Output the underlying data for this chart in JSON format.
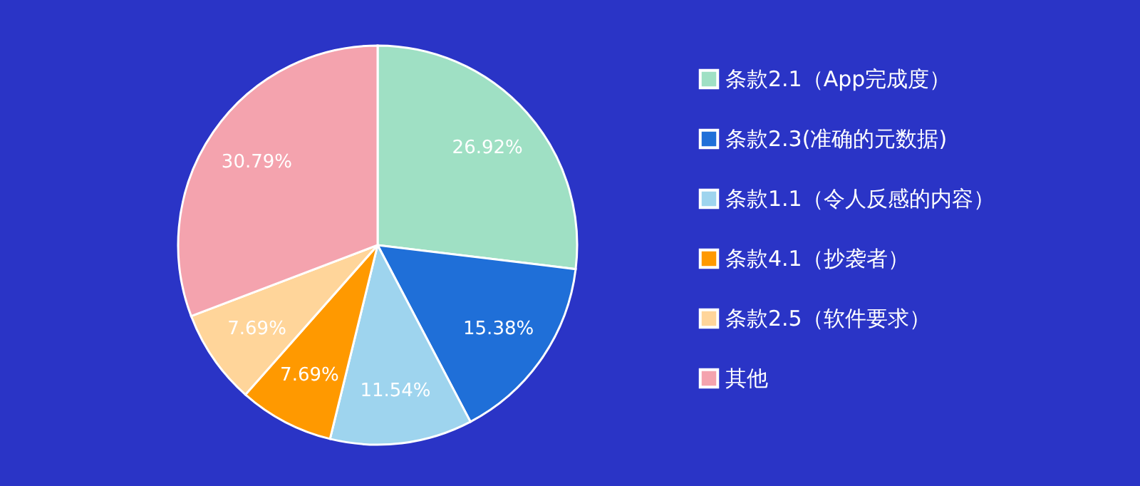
{
  "chart_data": {
    "type": "pie",
    "categories": [
      "条款2.1（App完成度）",
      "条款2.3(准确的元数据)",
      "条款1.1（令人反感的内容）",
      "条款4.1（抄袭者）",
      "条款2.5（软件要求）",
      "其他"
    ],
    "values": [
      26.92,
      15.38,
      11.54,
      7.69,
      7.69,
      30.79
    ],
    "value_labels": [
      "26.92%",
      "15.38%",
      "11.54%",
      "7.69%",
      "7.69%",
      "30.79%"
    ],
    "colors": [
      "#9fe0c4",
      "#1f6fd8",
      "#9ed4ee",
      "#ff9900",
      "#ffd59a",
      "#f4a3ae"
    ],
    "legend": "right"
  }
}
